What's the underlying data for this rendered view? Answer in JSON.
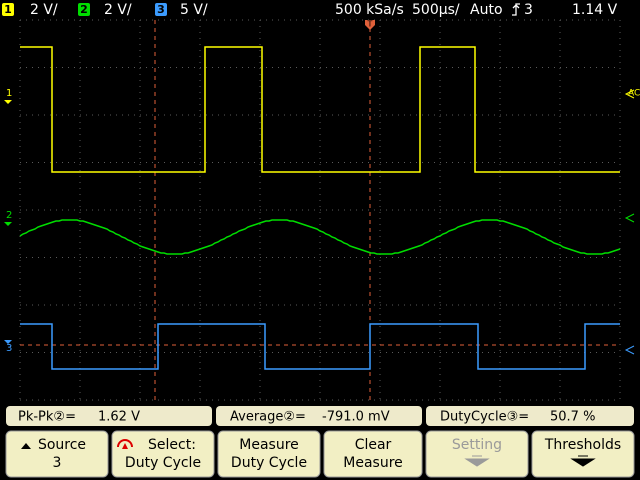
{
  "header": {
    "ch1_badge": "1",
    "ch1_scale": "2 V/",
    "ch2_badge": "2",
    "ch2_scale": "2 V/",
    "ch3_badge": "3",
    "ch3_scale": "5 V/",
    "sample_rate": "500 kSa/s",
    "timebase": "500µs/",
    "trigger_mode": "Auto",
    "trigger_source": "3",
    "trigger_level": "1.14 V"
  },
  "markers": {
    "ch1": "1",
    "ch2": "2",
    "ch3": "3",
    "coupling": "AC",
    "trigger": "T"
  },
  "measurements": [
    {
      "label": "Pk-Pk②=",
      "value": "1.62 V"
    },
    {
      "label": "Average②=",
      "value": "-791.0 mV"
    },
    {
      "label": "DutyCycle③=",
      "value": "50.7 %"
    }
  ],
  "softkeys": [
    {
      "line1": "Source",
      "line2": "3"
    },
    {
      "line1": "Select:",
      "line2": "Duty Cycle"
    },
    {
      "line1": "Measure",
      "line2": "Duty Cycle"
    },
    {
      "line1": "Clear",
      "line2": "Measure"
    },
    {
      "line1": "Setting"
    },
    {
      "line1": "Thresholds"
    }
  ]
}
